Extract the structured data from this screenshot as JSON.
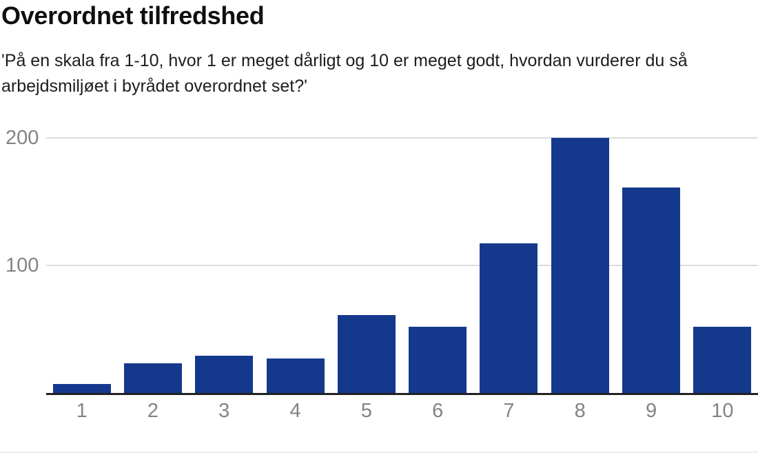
{
  "chart_data": {
    "type": "bar",
    "title": "Overordnet tilfredshed",
    "subtitle": "'På en skala fra 1-10, hvor 1 er meget dårligt og 10 er meget godt, hvordan vurderer du så arbejdsmiljøet i byrådet overordnet set?'",
    "categories": [
      "1",
      "2",
      "3",
      "4",
      "5",
      "6",
      "7",
      "8",
      "9",
      "10"
    ],
    "values": [
      7,
      23,
      29,
      27,
      61,
      52,
      117,
      200,
      161,
      52
    ],
    "xlabel": "",
    "ylabel": "",
    "yticks": [
      100,
      200
    ],
    "ylim": [
      0,
      216
    ],
    "grid": true,
    "legend": false,
    "bar_color": "#14388c",
    "gridline_color": "#dcdcdc",
    "baseline_color": "#212121",
    "axis_label_color": "#838383"
  }
}
